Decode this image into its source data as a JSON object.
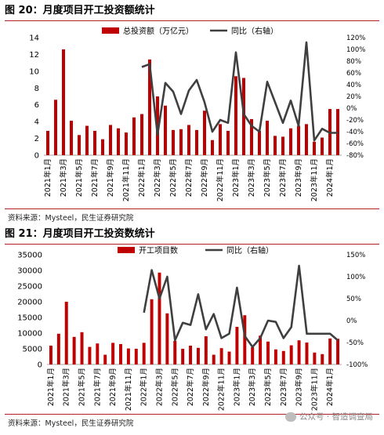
{
  "figures": [
    {
      "title": "图 20：月度项目开工投资额统计",
      "source": "资料来源：Mysteel，民生证券研究院"
    },
    {
      "title": "图 21：月度项目开工投资数统计",
      "source": "资料来源：Mysteel，民生证券研究院"
    }
  ],
  "watermark": "公众号 · 智造调查局",
  "colors": {
    "bar": "#c00000",
    "line": "#3f3f3f",
    "rule": "#b22025"
  },
  "chart_data": [
    {
      "type": "bar",
      "categories": [
        "2021年1月",
        "2021年2月",
        "2021年3月",
        "2021年4月",
        "2021年5月",
        "2021年6月",
        "2021年7月",
        "2021年8月",
        "2021年9月",
        "2021年10月",
        "2021年11月",
        "2021年12月",
        "2022年1月",
        "2022年2月",
        "2022年3月",
        "2022年4月",
        "2022年5月",
        "2022年6月",
        "2022年7月",
        "2022年8月",
        "2022年9月",
        "2022年10月",
        "2022年11月",
        "2022年12月",
        "2023年1月",
        "2023年2月",
        "2023年3月",
        "2023年4月",
        "2023年5月",
        "2023年6月",
        "2023年7月",
        "2023年8月",
        "2023年9月",
        "2023年10月",
        "2023年11月",
        "2023年12月",
        "2024年1月",
        "2024年2月"
      ],
      "tick_labels": [
        "2021年1月",
        "2021年3月",
        "2021年5月",
        "2021年7月",
        "2021年9月",
        "2021年11月",
        "2022年1月",
        "2022年3月",
        "2022年5月",
        "2022年7月",
        "2022年9月",
        "2022年11月",
        "2023年1月",
        "2023年3月",
        "2023年5月",
        "2023年7月",
        "2023年9月",
        "2023年11月",
        "2024年1月"
      ],
      "series": [
        {
          "name": "总投资额（万亿元）",
          "type": "bar",
          "axis": "left",
          "values": [
            2.9,
            6.6,
            12.6,
            4.1,
            2.4,
            3.5,
            2.9,
            1.9,
            3.6,
            3.2,
            2.7,
            4.5,
            4.9,
            11.4,
            7.0,
            5.9,
            3.0,
            3.1,
            3.6,
            3.0,
            5.3,
            1.8,
            3.7,
            2.9,
            9.4,
            9.2,
            4.3,
            2.9,
            4.1,
            2.3,
            2.2,
            3.2,
            3.5,
            3.7,
            1.6,
            2.1,
            5.5,
            5.5
          ]
        },
        {
          "name": "同比（右轴）",
          "type": "line",
          "axis": "right",
          "values": [
            null,
            null,
            null,
            null,
            null,
            null,
            null,
            null,
            null,
            null,
            null,
            null,
            70,
            75,
            -45,
            43,
            28,
            -10,
            30,
            48,
            10,
            -40,
            -20,
            -25,
            95,
            -10,
            -30,
            -40,
            45,
            10,
            -25,
            13,
            -30,
            112,
            -55,
            -35,
            -42,
            -42
          ]
        }
      ],
      "ylim_left": [
        0,
        14
      ],
      "yticks_left": [
        0,
        2,
        4,
        6,
        8,
        10,
        12,
        14
      ],
      "ylim_right": [
        -80,
        120
      ],
      "yticks_right": [
        -80,
        -60,
        -40,
        -20,
        0,
        20,
        40,
        60,
        80,
        100,
        120
      ],
      "right_format": "percent",
      "legend": "top"
    },
    {
      "type": "bar",
      "categories": [
        "2021年1月",
        "2021年2月",
        "2021年3月",
        "2021年4月",
        "2021年5月",
        "2021年6月",
        "2021年7月",
        "2021年8月",
        "2021年9月",
        "2021年10月",
        "2021年11月",
        "2021年12月",
        "2022年1月",
        "2022年2月",
        "2022年3月",
        "2022年4月",
        "2022年5月",
        "2022年6月",
        "2022年7月",
        "2022年8月",
        "2022年9月",
        "2022年10月",
        "2022年11月",
        "2022年12月",
        "2023年1月",
        "2023年2月",
        "2023年3月",
        "2023年4月",
        "2023年5月",
        "2023年6月",
        "2023年7月",
        "2023年8月",
        "2023年9月",
        "2023年10月",
        "2023年11月",
        "2023年12月",
        "2024年1月",
        "2024年2月"
      ],
      "tick_labels": [
        "2021年1月",
        "2021年3月",
        "2021年5月",
        "2021年7月",
        "2021年9月",
        "2021年11月",
        "2022年1月",
        "2022年3月",
        "2022年5月",
        "2022年7月",
        "2022年9月",
        "2022年11月",
        "2023年1月",
        "2023年3月",
        "2023年5月",
        "2023年7月",
        "2023年9月",
        "2023年11月",
        "2024年1月"
      ],
      "series": [
        {
          "name": "开工项目数",
          "type": "bar",
          "axis": "left",
          "values": [
            6000,
            9800,
            20000,
            8800,
            10300,
            5600,
            6700,
            3100,
            6900,
            6500,
            5100,
            5000,
            6900,
            20800,
            29300,
            16300,
            7500,
            5000,
            6000,
            5300,
            9000,
            3100,
            5200,
            4100,
            12000,
            15700,
            5500,
            9200,
            7300,
            4800,
            4300,
            6100,
            7700,
            7000,
            3800,
            3300,
            8300,
            8200
          ]
        },
        {
          "name": "同比（右轴）",
          "type": "line",
          "axis": "right",
          "values": [
            null,
            null,
            null,
            null,
            null,
            null,
            null,
            null,
            null,
            null,
            null,
            null,
            18,
            115,
            50,
            100,
            -45,
            -5,
            -10,
            60,
            -20,
            15,
            -40,
            -30,
            75,
            -35,
            -60,
            -40,
            0,
            -3,
            -40,
            -15,
            125,
            -30,
            -30,
            -30,
            -30,
            -45
          ]
        }
      ],
      "ylim_left": [
        0,
        35000
      ],
      "yticks_left": [
        0,
        5000,
        10000,
        15000,
        20000,
        25000,
        30000,
        35000
      ],
      "ylim_right": [
        -100,
        150
      ],
      "yticks_right": [
        -100,
        -50,
        0,
        50,
        100,
        150
      ],
      "right_format": "percent",
      "legend": "top"
    }
  ]
}
